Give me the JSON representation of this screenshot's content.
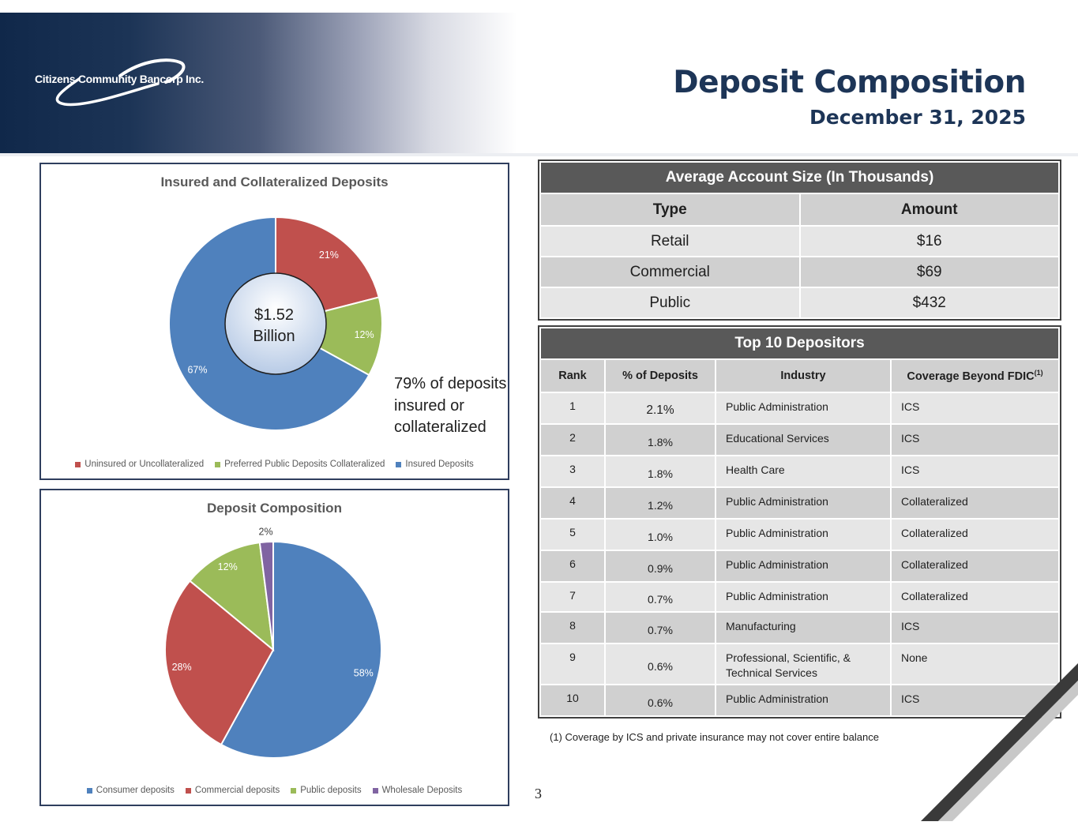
{
  "header": {
    "logo_text": "Citizens Community Bancorp Inc.",
    "title": "Deposit Composition",
    "subtitle": "December 31, 2025"
  },
  "insured_chart": {
    "title": "Insured and Collateralized Deposits",
    "center_line1": "$1.52",
    "center_line2": "Billion",
    "callout": "79% of deposits insured or collateralized",
    "legend": [
      "Uninsured or Uncollateralized",
      "Preferred Public Deposits Collateralized",
      "Insured Deposits"
    ]
  },
  "composition_chart": {
    "title": "Deposit Composition",
    "legend": [
      "Consumer deposits",
      "Commercial deposits",
      "Public deposits",
      "Wholesale Deposits"
    ]
  },
  "chart_data": [
    {
      "type": "pie",
      "title": "Insured and Collateralized Deposits",
      "categories": [
        "Uninsured or Uncollateralized",
        "Preferred Public Deposits Collateralized",
        "Insured Deposits"
      ],
      "values": [
        21,
        12,
        67
      ],
      "labels": [
        "21%",
        "12%",
        "67%"
      ],
      "colors": [
        "#c0504d",
        "#9bbb59",
        "#4f81bd"
      ],
      "legend": "bottom"
    },
    {
      "type": "pie",
      "title": "Deposit Composition",
      "categories": [
        "Consumer deposits",
        "Commercial deposits",
        "Public deposits",
        "Wholesale Deposits"
      ],
      "values": [
        58,
        28,
        12,
        2
      ],
      "labels": [
        "58%",
        "28%",
        "12%",
        "2%"
      ],
      "colors": [
        "#4f81bd",
        "#c0504d",
        "#9bbb59",
        "#8064a2"
      ],
      "legend": "bottom"
    }
  ],
  "avg_table": {
    "title": "Average Account Size (In Thousands)",
    "headers": [
      "Type",
      "Amount"
    ],
    "rows": [
      [
        "Retail",
        "$16"
      ],
      [
        "Commercial",
        "$69"
      ],
      [
        "Public",
        "$432"
      ]
    ]
  },
  "top_table": {
    "title": "Top 10 Depositors",
    "headers": [
      "Rank",
      "% of Deposits",
      "Industry",
      "Coverage Beyond FDIC"
    ],
    "header_sup": "(1)",
    "rows": [
      [
        "1",
        "2.1%",
        "Public Administration",
        "ICS"
      ],
      [
        "2",
        "1.8%",
        "Educational Services",
        "ICS"
      ],
      [
        "3",
        "1.8%",
        "Health Care",
        "ICS"
      ],
      [
        "4",
        "1.2%",
        "Public Administration",
        "Collateralized"
      ],
      [
        "5",
        "1.0%",
        "Public Administration",
        "Collateralized"
      ],
      [
        "6",
        "0.9%",
        "Public Administration",
        "Collateralized"
      ],
      [
        "7",
        "0.7%",
        "Public Administration",
        "Collateralized"
      ],
      [
        "8",
        "0.7%",
        "Manufacturing",
        "ICS"
      ],
      [
        "9",
        "0.6%",
        "Professional, Scientific, & Technical Services",
        "None"
      ],
      [
        "10",
        "0.6%",
        "Public Administration",
        "ICS"
      ]
    ]
  },
  "footnote": "(1) Coverage by ICS and private insurance may not cover entire balance",
  "page_number": "3"
}
